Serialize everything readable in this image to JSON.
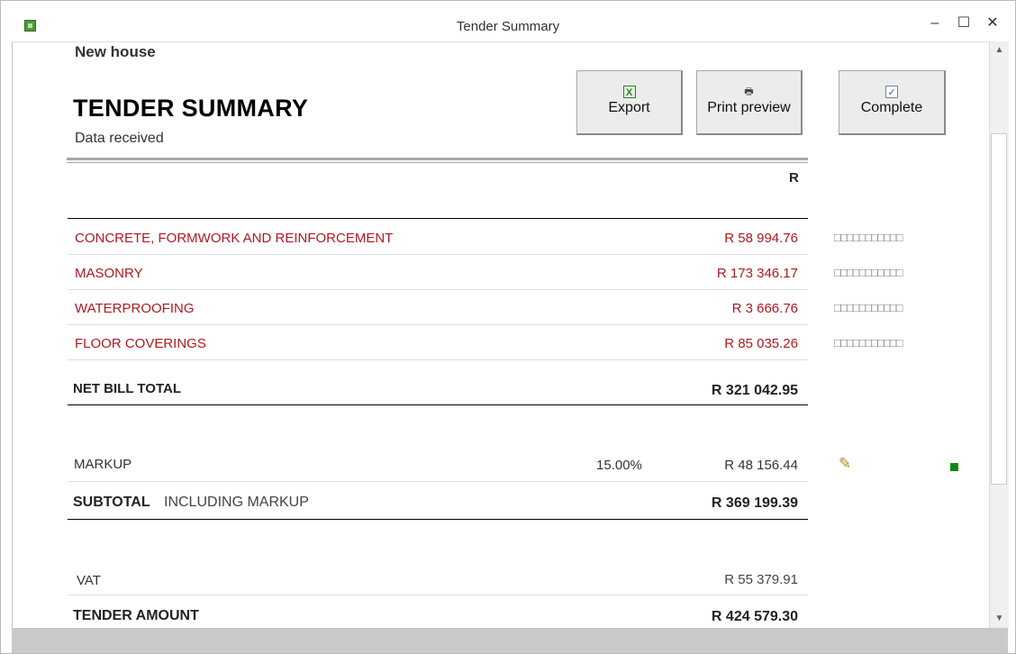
{
  "window": {
    "title": "Tender Summary",
    "icon": "access-form-icon",
    "controls": {
      "minimize": "–",
      "maximize": "☐",
      "close": "✕"
    }
  },
  "report": {
    "project": "New house",
    "heading": "TENDER SUMMARY",
    "status": "Data received",
    "currency_header": "R"
  },
  "toolbar": {
    "export_label": "Export",
    "print_preview_label": "Print preview",
    "complete_label": "Complete"
  },
  "bills": [
    {
      "name": "CONCRETE, FORMWORK AND REINFORCEMENT",
      "amount": "R 58 994.76",
      "markers": "□□□□□□□□□□□"
    },
    {
      "name": "MASONRY",
      "amount": "R 173 346.17",
      "markers": "□□□□□□□□□□□"
    },
    {
      "name": "WATERPROOFING",
      "amount": "R 3 666.76",
      "markers": "□□□□□□□□□□□"
    },
    {
      "name": "FLOOR COVERINGS",
      "amount": "R 85 035.26",
      "markers": "□□□□□□□□□□□"
    }
  ],
  "totals": {
    "net_bill_label": "NET BILL TOTAL",
    "net_bill_amount": "R 321 042.95",
    "markup_label": "MARKUP",
    "markup_percent": "15.00%",
    "markup_amount": "R 48 156.44",
    "subtotal_label": "SUBTOTAL",
    "subtotal_note": "INCLUDING MARKUP",
    "subtotal_amount": "R 369 199.39",
    "vat_label": "VAT",
    "vat_amount": "R 55 379.91",
    "tender_label": "TENDER AMOUNT",
    "tender_amount": "R 424 579.30"
  },
  "icons": {
    "edit": "✎",
    "scroll_up": "▲",
    "scroll_down": "▼"
  },
  "colors": {
    "bill_text": "#b0191f",
    "status_dot": "#118a11"
  }
}
